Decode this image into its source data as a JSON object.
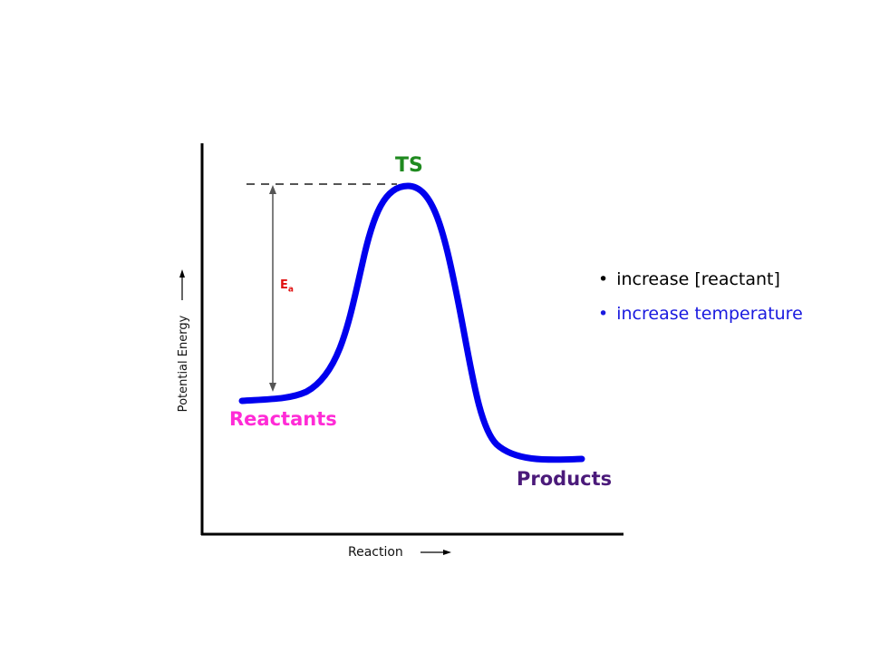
{
  "labels": {
    "ts": "TS",
    "reactants": "Reactants",
    "products": "Products",
    "ea_main": "E",
    "ea_sub": "a",
    "x_axis": "Reaction",
    "y_axis": "Potential Energy"
  },
  "notes": [
    {
      "text": "increase [reactant]",
      "color": "#000000"
    },
    {
      "text": "increase temperature",
      "color": "#1a1adf"
    }
  ],
  "colors": {
    "curve": "#0000ee",
    "ts": "#1f8a1f",
    "reactants": "#ff2bd6",
    "products": "#4b1a7a",
    "ea": "#e01010",
    "axes": "#000000"
  }
}
